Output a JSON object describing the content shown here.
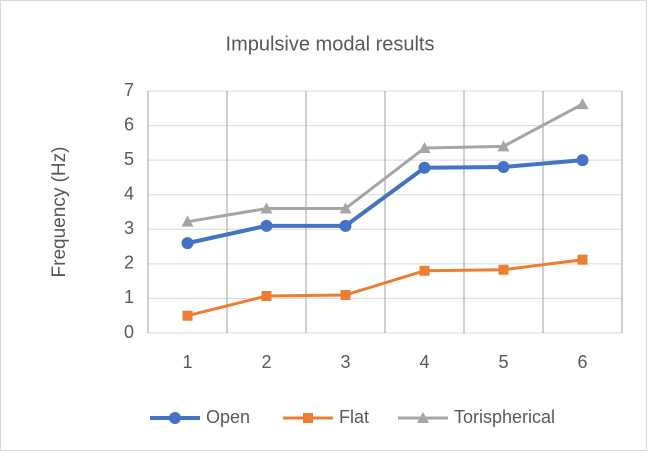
{
  "chart_data": {
    "type": "line",
    "title": "Impulsive modal results",
    "y_label": "Frequency (Hz)",
    "categories": [
      "1",
      "2",
      "3",
      "4",
      "5",
      "6"
    ],
    "series": [
      {
        "name": "Open",
        "color": "#4472c4",
        "marker": "circle",
        "values": [
          2.6,
          3.1,
          3.1,
          4.78,
          4.8,
          5.0
        ]
      },
      {
        "name": "Flat",
        "color": "#ed7d31",
        "marker": "square",
        "values": [
          0.5,
          1.07,
          1.1,
          1.8,
          1.83,
          2.12
        ]
      },
      {
        "name": "Torispherical",
        "color": "#a5a5a5",
        "marker": "triangle",
        "values": [
          3.22,
          3.6,
          3.6,
          5.35,
          5.4,
          6.62
        ]
      }
    ],
    "ylim": [
      0,
      7
    ],
    "yticks": [
      0,
      1,
      2,
      3,
      4,
      5,
      6,
      7
    ],
    "grid": true,
    "legend": "bottom"
  }
}
